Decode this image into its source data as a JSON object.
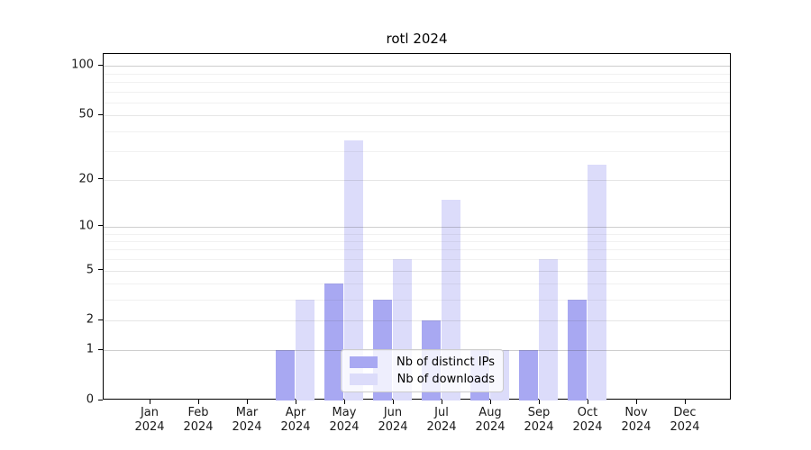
{
  "chart_data": {
    "type": "bar",
    "title": "rotl 2024",
    "categories": [
      "Jan 2024",
      "Feb 2024",
      "Mar 2024",
      "Apr 2024",
      "May 2024",
      "Jun 2024",
      "Jul 2024",
      "Aug 2024",
      "Sep 2024",
      "Oct 2024",
      "Nov 2024",
      "Dec 2024"
    ],
    "x_labels": [
      {
        "line1": "Jan",
        "line2": "2024"
      },
      {
        "line1": "Feb",
        "line2": "2024"
      },
      {
        "line1": "Mar",
        "line2": "2024"
      },
      {
        "line1": "Apr",
        "line2": "2024"
      },
      {
        "line1": "May",
        "line2": "2024"
      },
      {
        "line1": "Jun",
        "line2": "2024"
      },
      {
        "line1": "Jul",
        "line2": "2024"
      },
      {
        "line1": "Aug",
        "line2": "2024"
      },
      {
        "line1": "Sep",
        "line2": "2024"
      },
      {
        "line1": "Oct",
        "line2": "2024"
      },
      {
        "line1": "Nov",
        "line2": "2024"
      },
      {
        "line1": "Dec",
        "line2": "2024"
      }
    ],
    "series": [
      {
        "name": "Nb of distinct IPs",
        "color": "#a8a8f2",
        "values": [
          0,
          0,
          0,
          1,
          4,
          3,
          2,
          1,
          1,
          3,
          0,
          0
        ]
      },
      {
        "name": "Nb of downloads",
        "color": "#dcdcfa",
        "values": [
          0,
          0,
          0,
          3,
          35,
          6,
          15,
          1,
          6,
          25,
          0,
          0
        ]
      }
    ],
    "yscale": "log1p",
    "ylim": [
      0,
      118
    ],
    "y_ticks": [
      0,
      1,
      2,
      5,
      10,
      20,
      50,
      100
    ],
    "y_minor_ticks": [
      3,
      4,
      6,
      7,
      8,
      9,
      30,
      40,
      60,
      70,
      80,
      90
    ],
    "grid": true,
    "legend": {
      "position": "lower center inside",
      "background": "rgba(255,255,255,0.8)",
      "border_color": "#cccccc"
    }
  }
}
